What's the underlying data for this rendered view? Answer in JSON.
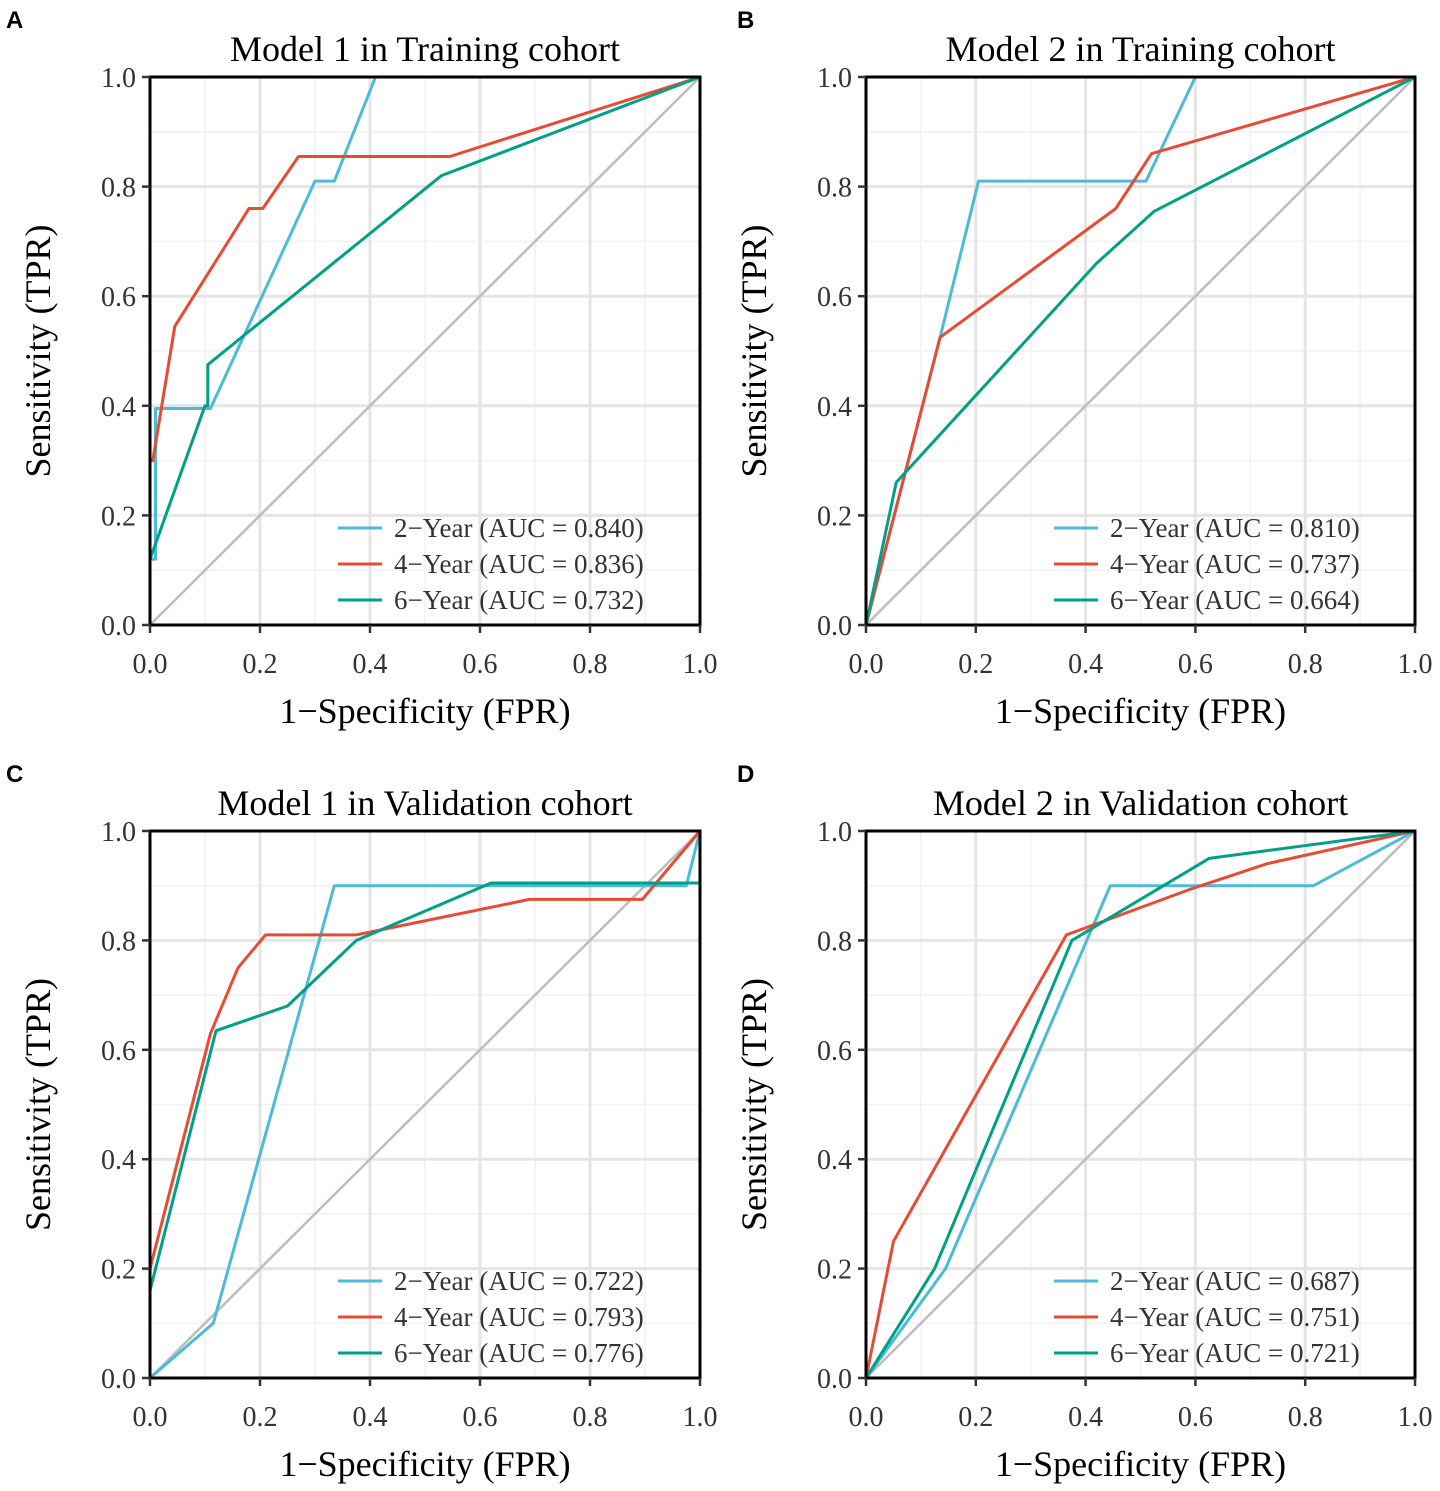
{
  "chart_data": [
    {
      "panel": "A",
      "type": "line",
      "title": "Model 1 in Training cohort",
      "xlabel": "1−Specificity (FPR)",
      "ylabel": "Sensitivity (TPR)",
      "xlim": [
        0,
        1
      ],
      "ylim": [
        0,
        1
      ],
      "xticks": [
        "0.0",
        "0.2",
        "0.4",
        "0.6",
        "0.8",
        "1.0"
      ],
      "yticks": [
        "0.0",
        "0.2",
        "0.4",
        "0.6",
        "0.8",
        "1.0"
      ],
      "series": [
        {
          "name": "2−Year (AUC = 0.840)",
          "color": "#4DBBD5",
          "points": [
            [
              0,
              0
            ],
            [
              0,
              0.12
            ],
            [
              0.01,
              0.12
            ],
            [
              0.01,
              0.395
            ],
            [
              0.11,
              0.395
            ],
            [
              0.3,
              0.81
            ],
            [
              0.335,
              0.81
            ],
            [
              0.41,
              1.0
            ],
            [
              1,
              1
            ]
          ]
        },
        {
          "name": "4−Year (AUC = 0.836)",
          "color": "#E64B35",
          "points": [
            [
              0,
              0
            ],
            [
              0,
              0.3
            ],
            [
              0.005,
              0.3
            ],
            [
              0.045,
              0.545
            ],
            [
              0.18,
              0.76
            ],
            [
              0.205,
              0.76
            ],
            [
              0.27,
              0.855
            ],
            [
              0.545,
              0.855
            ],
            [
              1,
              1
            ]
          ]
        },
        {
          "name": "6−Year (AUC = 0.732)",
          "color": "#00A087",
          "points": [
            [
              0,
              0
            ],
            [
              0,
              0.12
            ],
            [
              0.1,
              0.4
            ],
            [
              0.105,
              0.4
            ],
            [
              0.105,
              0.475
            ],
            [
              0.53,
              0.82
            ],
            [
              1,
              1
            ]
          ]
        }
      ]
    },
    {
      "panel": "B",
      "type": "line",
      "title": "Model 2 in Training cohort",
      "xlabel": "1−Specificity (FPR)",
      "ylabel": "Sensitivity (TPR)",
      "xlim": [
        0,
        1
      ],
      "ylim": [
        0,
        1
      ],
      "xticks": [
        "0.0",
        "0.2",
        "0.4",
        "0.6",
        "0.8",
        "1.0"
      ],
      "yticks": [
        "0.0",
        "0.2",
        "0.4",
        "0.6",
        "0.8",
        "1.0"
      ],
      "series": [
        {
          "name": "2−Year (AUC = 0.810)",
          "color": "#4DBBD5",
          "points": [
            [
              0,
              0
            ],
            [
              0.135,
              0.525
            ],
            [
              0.205,
              0.81
            ],
            [
              0.51,
              0.81
            ],
            [
              0.6,
              1.0
            ],
            [
              1,
              1
            ]
          ]
        },
        {
          "name": "4−Year (AUC = 0.737)",
          "color": "#E64B35",
          "points": [
            [
              0,
              0
            ],
            [
              0.135,
              0.525
            ],
            [
              0.455,
              0.76
            ],
            [
              0.52,
              0.86
            ],
            [
              1,
              1
            ]
          ]
        },
        {
          "name": "6−Year (AUC = 0.664)",
          "color": "#00A087",
          "points": [
            [
              0,
              0
            ],
            [
              0.055,
              0.26
            ],
            [
              0.42,
              0.66
            ],
            [
              0.525,
              0.755
            ],
            [
              1,
              1
            ]
          ]
        }
      ]
    },
    {
      "panel": "C",
      "type": "line",
      "title": "Model 1 in Validation cohort",
      "xlabel": "1−Specificity (FPR)",
      "ylabel": "Sensitivity (TPR)",
      "xlim": [
        0,
        1
      ],
      "ylim": [
        0,
        1
      ],
      "xticks": [
        "0.0",
        "0.2",
        "0.4",
        "0.6",
        "0.8",
        "1.0"
      ],
      "yticks": [
        "0.0",
        "0.2",
        "0.4",
        "0.6",
        "0.8",
        "1.0"
      ],
      "series": [
        {
          "name": "2−Year (AUC = 0.722)",
          "color": "#4DBBD5",
          "points": [
            [
              0,
              0
            ],
            [
              0.115,
              0.1
            ],
            [
              0.335,
              0.9
            ],
            [
              0.975,
              0.9
            ],
            [
              1,
              1
            ]
          ]
        },
        {
          "name": "4−Year (AUC = 0.793)",
          "color": "#E64B35",
          "points": [
            [
              0,
              0.2
            ],
            [
              0.11,
              0.63
            ],
            [
              0.16,
              0.75
            ],
            [
              0.21,
              0.81
            ],
            [
              0.375,
              0.81
            ],
            [
              0.69,
              0.875
            ],
            [
              0.895,
              0.875
            ],
            [
              1,
              1
            ]
          ]
        },
        {
          "name": "6−Year (AUC = 0.776)",
          "color": "#00A087",
          "points": [
            [
              0,
              0
            ],
            [
              0,
              0.16
            ],
            [
              0.12,
              0.635
            ],
            [
              0.25,
              0.68
            ],
            [
              0.375,
              0.8
            ],
            [
              0.62,
              0.905
            ],
            [
              1,
              0.905
            ],
            [
              1,
              1
            ]
          ]
        }
      ]
    },
    {
      "panel": "D",
      "type": "line",
      "title": "Model 2 in Validation cohort",
      "xlabel": "1−Specificity (FPR)",
      "ylabel": "Sensitivity (TPR)",
      "xlim": [
        0,
        1
      ],
      "ylim": [
        0,
        1
      ],
      "xticks": [
        "0.0",
        "0.2",
        "0.4",
        "0.6",
        "0.8",
        "1.0"
      ],
      "yticks": [
        "0.0",
        "0.2",
        "0.4",
        "0.6",
        "0.8",
        "1.0"
      ],
      "series": [
        {
          "name": "2−Year (AUC = 0.687)",
          "color": "#4DBBD5",
          "points": [
            [
              0,
              0
            ],
            [
              0.145,
              0.2
            ],
            [
              0.445,
              0.9
            ],
            [
              0.815,
              0.9
            ],
            [
              1,
              1
            ]
          ]
        },
        {
          "name": "4−Year (AUC = 0.751)",
          "color": "#E64B35",
          "points": [
            [
              0,
              0
            ],
            [
              0.05,
              0.25
            ],
            [
              0.365,
              0.81
            ],
            [
              0.595,
              0.895
            ],
            [
              0.73,
              0.94
            ],
            [
              1,
              1
            ]
          ]
        },
        {
          "name": "6−Year (AUC = 0.721)",
          "color": "#00A087",
          "points": [
            [
              0,
              0
            ],
            [
              0.125,
              0.2
            ],
            [
              0.375,
              0.8
            ],
            [
              0.625,
              0.95
            ],
            [
              1,
              1
            ]
          ]
        }
      ]
    }
  ]
}
